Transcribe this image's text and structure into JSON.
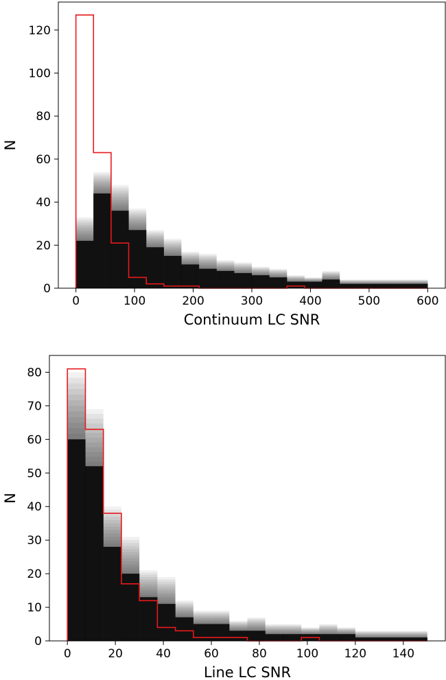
{
  "chart_data": [
    {
      "type": "bar",
      "xlabel": "Continuum LC SNR",
      "ylabel": "N",
      "xlim": [
        -30,
        630
      ],
      "ylim": [
        0,
        133
      ],
      "xticks": [
        0,
        100,
        200,
        300,
        400,
        500,
        600
      ],
      "yticks": [
        0,
        20,
        40,
        60,
        80,
        100,
        120
      ],
      "bin_edges": [
        0,
        30,
        60,
        90,
        120,
        150,
        180,
        210,
        240,
        270,
        300,
        330,
        360,
        390,
        420,
        450,
        480,
        510,
        540,
        570,
        600
      ],
      "colors": {
        "stack": "#000000",
        "outline": "#e8191c"
      },
      "grid": false,
      "series": [
        {
          "role": "gray-stack-upper",
          "values": [
            33,
            54,
            48,
            37,
            27,
            23,
            17,
            16,
            13,
            12,
            10,
            9,
            6,
            5,
            8,
            4,
            4,
            4,
            4,
            4
          ]
        },
        {
          "role": "gray-stack-core",
          "values": [
            22,
            44,
            36,
            27,
            19,
            15,
            11,
            9,
            8,
            7,
            6,
            5,
            3,
            3,
            4,
            2,
            2,
            2,
            2,
            2
          ]
        },
        {
          "role": "red-outline",
          "values": [
            127,
            63,
            21,
            5,
            2,
            1,
            1,
            0,
            0,
            0,
            0,
            0,
            1,
            0,
            0,
            0,
            0,
            0,
            0,
            0
          ]
        }
      ]
    },
    {
      "type": "bar",
      "xlabel": "Line LC SNR",
      "ylabel": "N",
      "xlim": [
        -7.5,
        157.5
      ],
      "ylim": [
        0,
        85
      ],
      "xticks": [
        0,
        20,
        40,
        60,
        80,
        100,
        120,
        140
      ],
      "yticks": [
        0,
        10,
        20,
        30,
        40,
        50,
        60,
        70,
        80
      ],
      "bin_edges": [
        0,
        7.5,
        15,
        22.5,
        30,
        37.5,
        45,
        52.5,
        60,
        67.5,
        75,
        82.5,
        90,
        97.5,
        105,
        112.5,
        120,
        127.5,
        135,
        142.5,
        150
      ],
      "colors": {
        "stack": "#000000",
        "outline": "#e8191c"
      },
      "grid": false,
      "series": [
        {
          "role": "gray-stack-upper",
          "values": [
            80,
            69,
            40,
            31,
            21,
            19,
            12,
            9,
            9,
            6,
            7,
            5,
            5,
            4,
            5,
            4,
            3,
            3,
            3,
            3
          ]
        },
        {
          "role": "gray-stack-core",
          "values": [
            60,
            52,
            28,
            20,
            13,
            11,
            7,
            5,
            5,
            3,
            3,
            2,
            2,
            2,
            2,
            2,
            1,
            1,
            1,
            1
          ]
        },
        {
          "role": "red-outline",
          "values": [
            81,
            63,
            38,
            17,
            12,
            4,
            3,
            1,
            1,
            1,
            0,
            0,
            0,
            1,
            0,
            0,
            0,
            0,
            0,
            0
          ]
        }
      ]
    }
  ]
}
